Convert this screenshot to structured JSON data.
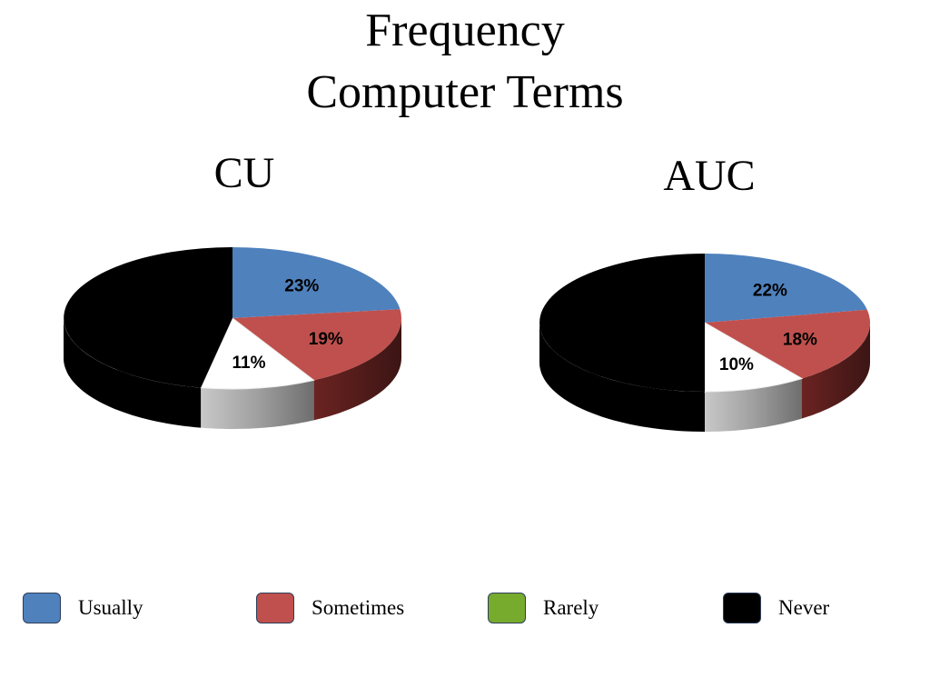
{
  "title": {
    "line1": "Frequency",
    "line2": "Computer Terms"
  },
  "chart_data": [
    {
      "type": "pie",
      "title": "CU",
      "categories": [
        "Usually",
        "Sometimes",
        "Rarely",
        "Never"
      ],
      "values": [
        23,
        19,
        11,
        47
      ],
      "labels": [
        "23%",
        "19%",
        "11%",
        ""
      ],
      "colors": [
        "#4f81bd",
        "#c0504d",
        "#ffffff",
        "#000000"
      ]
    },
    {
      "type": "pie",
      "title": "AUC",
      "categories": [
        "Usually",
        "Sometimes",
        "Rarely",
        "Never"
      ],
      "values": [
        22,
        18,
        10,
        50
      ],
      "labels": [
        "22%",
        "18%",
        "10%",
        ""
      ],
      "colors": [
        "#4f81bd",
        "#c0504d",
        "#ffffff",
        "#000000"
      ]
    }
  ],
  "legend": [
    {
      "label": "Usually",
      "color": "#4f81bd"
    },
    {
      "label": "Sometimes",
      "color": "#c0504d"
    },
    {
      "label": "Rarely",
      "color": "#77ab2d"
    },
    {
      "label": "Never",
      "color": "#000000"
    }
  ]
}
